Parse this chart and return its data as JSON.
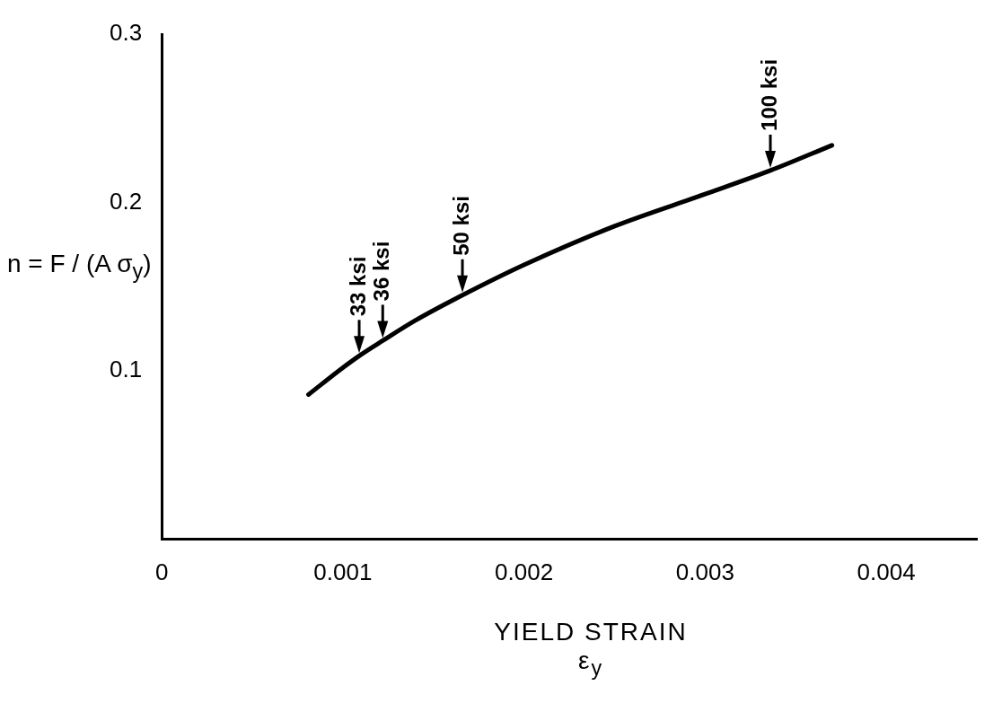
{
  "chart_data": {
    "type": "line",
    "xlabel": "YIELD STRAIN\nε$_{y}$",
    "ylabel": "n = F / (A σ$_{y}$)",
    "x": [
      0.00081,
      0.001,
      0.00109,
      0.00122,
      0.0014,
      0.00166,
      0.002,
      0.0025,
      0.003,
      0.00336,
      0.0037
    ],
    "series": [
      {
        "color": "#000000",
        "values": [
          0.086,
          0.102,
          0.109,
          0.118,
          0.13,
          0.145,
          0.163,
          0.186,
          0.205,
          0.219,
          0.234
        ]
      }
    ],
    "xlim": [
      0,
      0.0045
    ],
    "xticks": [
      0,
      0.001,
      0.002,
      0.003,
      0.004
    ],
    "ylim": [
      0,
      0.3
    ],
    "yticks": [
      0.1,
      0.2,
      0.3
    ],
    "annotations": [
      {
        "text": "33 ksi",
        "x": 0.00109,
        "y": 0.109
      },
      {
        "text": "36 ksi",
        "x": 0.00122,
        "y": 0.118
      },
      {
        "text": "50 ksi",
        "x": 0.00166,
        "y": 0.145
      },
      {
        "text": "100 ksi",
        "x": 0.00336,
        "y": 0.219
      }
    ],
    "grid": false,
    "legend": false,
    "marker": "none",
    "line_style": "solid"
  }
}
